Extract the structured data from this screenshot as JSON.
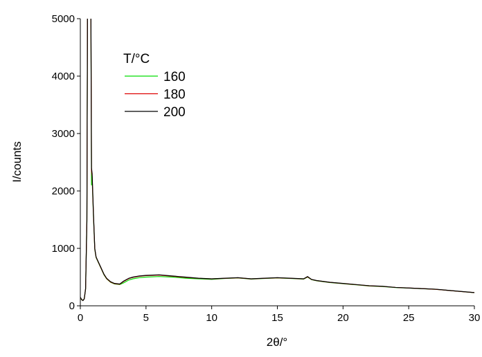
{
  "chart_data": {
    "type": "line",
    "xlabel": "2θ/°",
    "ylabel": "I/counts",
    "legend_title": "T/°C",
    "x": [
      0,
      0.1,
      0.2,
      0.3,
      0.4,
      0.5,
      0.55,
      0.7,
      0.8,
      0.85,
      0.9,
      1.0,
      1.1,
      1.2,
      1.4,
      1.6,
      1.8,
      2,
      2.3,
      2.6,
      3,
      3.3,
      3.7,
      4,
      4.5,
      5,
      6,
      7,
      8,
      9,
      10,
      11,
      12,
      13,
      14,
      15,
      16,
      17,
      17.3,
      17.6,
      18,
      19,
      20,
      21,
      22,
      23,
      24,
      25,
      26,
      27,
      28,
      29,
      30
    ],
    "series": [
      {
        "name": "160",
        "color": "#00dd00",
        "values": [
          140,
          105,
          95,
          125,
          290,
          1450,
          5400,
          8000,
          5400,
          2100,
          2200,
          1550,
          980,
          840,
          740,
          640,
          540,
          470,
          410,
          380,
          370,
          400,
          450,
          470,
          490,
          500,
          510,
          500,
          480,
          470,
          460,
          475,
          485,
          465,
          475,
          485,
          475,
          465,
          500,
          455,
          435,
          405,
          385,
          365,
          345,
          335,
          318,
          308,
          298,
          288,
          268,
          248,
          228
        ]
      },
      {
        "name": "180",
        "color": "#dd0000",
        "values": [
          145,
          108,
          92,
          122,
          295,
          1480,
          5450,
          8000,
          5450,
          2350,
          2250,
          1580,
          990,
          845,
          745,
          645,
          545,
          475,
          415,
          385,
          375,
          425,
          475,
          495,
          515,
          525,
          535,
          515,
          495,
          478,
          468,
          478,
          488,
          468,
          478,
          488,
          478,
          468,
          505,
          458,
          438,
          408,
          388,
          368,
          348,
          338,
          320,
          310,
          300,
          288,
          268,
          248,
          230
        ]
      },
      {
        "name": "200",
        "color": "#000000",
        "values": [
          150,
          110,
          90,
          120,
          300,
          1500,
          5500,
          8000,
          5500,
          2400,
          2300,
          1600,
          1000,
          850,
          750,
          650,
          550,
          480,
          420,
          390,
          380,
          430,
          480,
          500,
          520,
          530,
          540,
          520,
          500,
          480,
          470,
          480,
          490,
          470,
          480,
          490,
          480,
          470,
          510,
          460,
          440,
          410,
          390,
          370,
          350,
          340,
          320,
          310,
          300,
          290,
          270,
          250,
          230
        ]
      }
    ],
    "xlim": [
      0,
      30
    ],
    "xticks": [
      0,
      5,
      10,
      15,
      20,
      25,
      30
    ],
    "ylim": [
      0,
      5000
    ],
    "yticks": [
      0,
      1000,
      2000,
      3000,
      4000,
      5000
    ]
  }
}
